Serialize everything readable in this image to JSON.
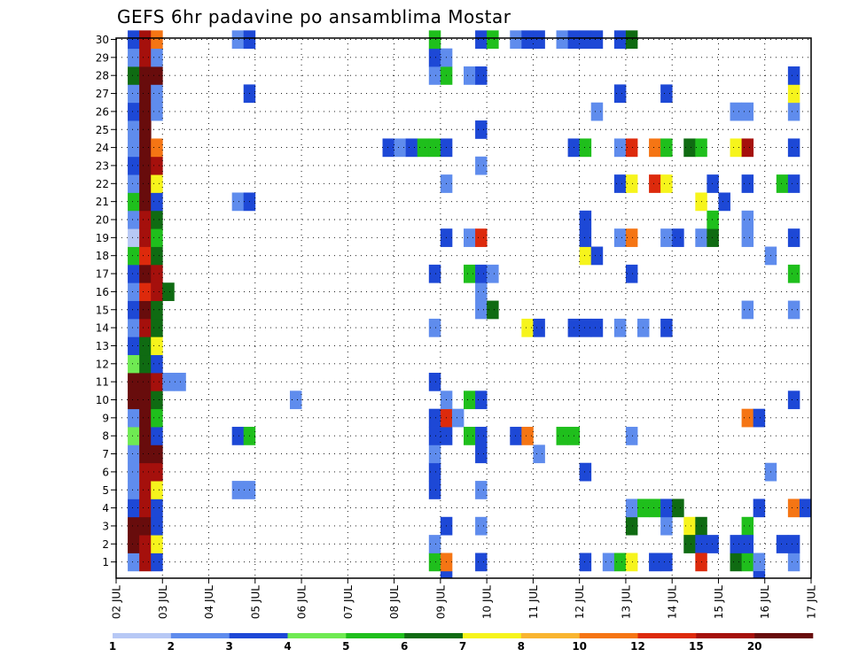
{
  "chart_data": {
    "type": "heatmap",
    "title": "GEFS 6hr padavine po ansamblima Mostar",
    "x_tick_labels": [
      "02 JUL",
      "03 JUL",
      "04 JUL",
      "05 JUL",
      "06 JUL",
      "07 JUL",
      "08 JUL",
      "09 JUL",
      "10 JUL",
      "11 JUL",
      "12 JUL",
      "13 JUL",
      "14 JUL",
      "15 JUL",
      "16 JUL",
      "17 JUL"
    ],
    "y_tick_labels": [
      "1",
      "2",
      "3",
      "4",
      "5",
      "6",
      "7",
      "8",
      "9",
      "10",
      "11",
      "12",
      "13",
      "14",
      "15",
      "16",
      "17",
      "18",
      "19",
      "20",
      "21",
      "22",
      "23",
      "24",
      "25",
      "26",
      "27",
      "28",
      "29",
      "30"
    ],
    "n_columns": 60,
    "n_rows": 30,
    "grid": true,
    "legend": {
      "placement": "bottom",
      "labels": [
        "1",
        "2",
        "3",
        "4",
        "5",
        "6",
        "7",
        "8",
        "10",
        "12",
        "15",
        "20"
      ],
      "colors": [
        "#b7c8f5",
        "#5f8ced",
        "#1d48d6",
        "#6fea52",
        "#1fbf1c",
        "#0f6b12",
        "#f6f41c",
        "#f9b530",
        "#f57514",
        "#dd2a0c",
        "#a5100c",
        "#680c0c"
      ]
    },
    "cells": [
      [
        1,
        1,
        1
      ],
      [
        1,
        2,
        11
      ],
      [
        1,
        3,
        11
      ],
      [
        1,
        4,
        2
      ],
      [
        1,
        5,
        1
      ],
      [
        1,
        6,
        1
      ],
      [
        1,
        7,
        1
      ],
      [
        1,
        8,
        3
      ],
      [
        1,
        9,
        1
      ],
      [
        1,
        10,
        11
      ],
      [
        1,
        11,
        11
      ],
      [
        1,
        12,
        3
      ],
      [
        1,
        13,
        2
      ],
      [
        1,
        14,
        1
      ],
      [
        1,
        15,
        2
      ],
      [
        1,
        16,
        1
      ],
      [
        1,
        17,
        2
      ],
      [
        1,
        18,
        4
      ],
      [
        1,
        19,
        0
      ],
      [
        1,
        20,
        1
      ],
      [
        1,
        21,
        4
      ],
      [
        1,
        22,
        1
      ],
      [
        1,
        23,
        2
      ],
      [
        1,
        24,
        1
      ],
      [
        1,
        25,
        1
      ],
      [
        1,
        26,
        2
      ],
      [
        1,
        27,
        1
      ],
      [
        1,
        28,
        5
      ],
      [
        1,
        29,
        1
      ],
      [
        1,
        30,
        2
      ],
      [
        2,
        1,
        10
      ],
      [
        2,
        2,
        10
      ],
      [
        2,
        3,
        11
      ],
      [
        2,
        4,
        10
      ],
      [
        2,
        5,
        10
      ],
      [
        2,
        6,
        10
      ],
      [
        2,
        7,
        11
      ],
      [
        2,
        8,
        11
      ],
      [
        2,
        9,
        11
      ],
      [
        2,
        10,
        11
      ],
      [
        2,
        11,
        11
      ],
      [
        2,
        12,
        5
      ],
      [
        2,
        13,
        5
      ],
      [
        2,
        14,
        10
      ],
      [
        2,
        15,
        11
      ],
      [
        2,
        16,
        9
      ],
      [
        2,
        17,
        11
      ],
      [
        2,
        18,
        9
      ],
      [
        2,
        19,
        10
      ],
      [
        2,
        20,
        10
      ],
      [
        2,
        21,
        11
      ],
      [
        2,
        22,
        11
      ],
      [
        2,
        23,
        11
      ],
      [
        2,
        24,
        11
      ],
      [
        2,
        25,
        11
      ],
      [
        2,
        26,
        11
      ],
      [
        2,
        27,
        11
      ],
      [
        2,
        28,
        11
      ],
      [
        2,
        29,
        10
      ],
      [
        2,
        30,
        10
      ],
      [
        3,
        1,
        2
      ],
      [
        3,
        2,
        6
      ],
      [
        3,
        3,
        2
      ],
      [
        3,
        4,
        2
      ],
      [
        3,
        5,
        6
      ],
      [
        3,
        6,
        10
      ],
      [
        3,
        7,
        11
      ],
      [
        3,
        8,
        2
      ],
      [
        3,
        9,
        4
      ],
      [
        3,
        10,
        5
      ],
      [
        3,
        11,
        10
      ],
      [
        3,
        12,
        2
      ],
      [
        3,
        13,
        6
      ],
      [
        3,
        14,
        5
      ],
      [
        3,
        15,
        5
      ],
      [
        3,
        16,
        10
      ],
      [
        3,
        17,
        10
      ],
      [
        3,
        18,
        5
      ],
      [
        3,
        19,
        4
      ],
      [
        3,
        20,
        5
      ],
      [
        3,
        21,
        2
      ],
      [
        3,
        22,
        6
      ],
      [
        3,
        23,
        10
      ],
      [
        3,
        24,
        8
      ],
      [
        3,
        26,
        1
      ],
      [
        3,
        27,
        1
      ],
      [
        3,
        28,
        11
      ],
      [
        3,
        29,
        1
      ],
      [
        3,
        30,
        8
      ],
      [
        4,
        11,
        1
      ],
      [
        4,
        16,
        5
      ],
      [
        5,
        11,
        1
      ],
      [
        10,
        5,
        1
      ],
      [
        10,
        8,
        2
      ],
      [
        10,
        21,
        1
      ],
      [
        10,
        30,
        1
      ],
      [
        11,
        5,
        1
      ],
      [
        11,
        8,
        4
      ],
      [
        11,
        21,
        2
      ],
      [
        11,
        27,
        2
      ],
      [
        11,
        30,
        2
      ],
      [
        15,
        10,
        1
      ],
      [
        23,
        24,
        2
      ],
      [
        24,
        24,
        1
      ],
      [
        25,
        24,
        2
      ],
      [
        26,
        24,
        4
      ],
      [
        27,
        24,
        4
      ],
      [
        27,
        1,
        4
      ],
      [
        27,
        2,
        1
      ],
      [
        27,
        5,
        2
      ],
      [
        27,
        6,
        2
      ],
      [
        27,
        7,
        1
      ],
      [
        27,
        8,
        2
      ],
      [
        27,
        9,
        2
      ],
      [
        27,
        11,
        2
      ],
      [
        27,
        14,
        1
      ],
      [
        27,
        17,
        2
      ],
      [
        27,
        28,
        1
      ],
      [
        27,
        29,
        2
      ],
      [
        27,
        30,
        4
      ],
      [
        28,
        0,
        2
      ],
      [
        28,
        1,
        8
      ],
      [
        28,
        3,
        2
      ],
      [
        28,
        8,
        2
      ],
      [
        28,
        9,
        9
      ],
      [
        28,
        10,
        1
      ],
      [
        28,
        19,
        2
      ],
      [
        28,
        22,
        1
      ],
      [
        28,
        24,
        2
      ],
      [
        28,
        28,
        4
      ],
      [
        28,
        29,
        1
      ],
      [
        29,
        9,
        1
      ],
      [
        30,
        8,
        4
      ],
      [
        30,
        10,
        4
      ],
      [
        30,
        17,
        4
      ],
      [
        30,
        19,
        1
      ],
      [
        30,
        28,
        1
      ],
      [
        31,
        1,
        2
      ],
      [
        31,
        3,
        1
      ],
      [
        31,
        5,
        1
      ],
      [
        31,
        7,
        2
      ],
      [
        31,
        8,
        2
      ],
      [
        31,
        10,
        2
      ],
      [
        31,
        15,
        1
      ],
      [
        31,
        16,
        1
      ],
      [
        31,
        17,
        2
      ],
      [
        31,
        19,
        9
      ],
      [
        31,
        23,
        1
      ],
      [
        31,
        25,
        2
      ],
      [
        31,
        28,
        2
      ],
      [
        31,
        30,
        2
      ],
      [
        32,
        15,
        5
      ],
      [
        32,
        17,
        1
      ],
      [
        32,
        30,
        4
      ],
      [
        34,
        8,
        2
      ],
      [
        34,
        30,
        1
      ],
      [
        35,
        8,
        8
      ],
      [
        35,
        14,
        6
      ],
      [
        35,
        30,
        2
      ],
      [
        36,
        7,
        1
      ],
      [
        36,
        14,
        2
      ],
      [
        36,
        30,
        2
      ],
      [
        38,
        8,
        4
      ],
      [
        38,
        30,
        1
      ],
      [
        39,
        8,
        4
      ],
      [
        39,
        14,
        2
      ],
      [
        39,
        24,
        2
      ],
      [
        39,
        30,
        2
      ],
      [
        40,
        6,
        2
      ],
      [
        40,
        1,
        2
      ],
      [
        40,
        14,
        2
      ],
      [
        40,
        18,
        6
      ],
      [
        40,
        19,
        2
      ],
      [
        40,
        20,
        2
      ],
      [
        40,
        24,
        4
      ],
      [
        40,
        30,
        2
      ],
      [
        41,
        14,
        2
      ],
      [
        41,
        18,
        2
      ],
      [
        41,
        26,
        1
      ],
      [
        41,
        30,
        2
      ],
      [
        42,
        1,
        1
      ],
      [
        43,
        1,
        4
      ],
      [
        43,
        14,
        1
      ],
      [
        43,
        19,
        1
      ],
      [
        43,
        22,
        2
      ],
      [
        43,
        24,
        1
      ],
      [
        43,
        27,
        2
      ],
      [
        43,
        30,
        2
      ],
      [
        44,
        1,
        6
      ],
      [
        44,
        3,
        5
      ],
      [
        44,
        4,
        1
      ],
      [
        44,
        8,
        1
      ],
      [
        44,
        17,
        2
      ],
      [
        44,
        19,
        8
      ],
      [
        44,
        22,
        6
      ],
      [
        44,
        24,
        9
      ],
      [
        44,
        30,
        5
      ],
      [
        45,
        4,
        4
      ],
      [
        45,
        14,
        1
      ],
      [
        46,
        1,
        2
      ],
      [
        46,
        4,
        4
      ],
      [
        46,
        22,
        9
      ],
      [
        46,
        24,
        8
      ],
      [
        47,
        1,
        2
      ],
      [
        47,
        3,
        1
      ],
      [
        47,
        4,
        2
      ],
      [
        47,
        14,
        2
      ],
      [
        47,
        19,
        1
      ],
      [
        47,
        22,
        6
      ],
      [
        47,
        24,
        4
      ],
      [
        47,
        27,
        2
      ],
      [
        48,
        4,
        5
      ],
      [
        48,
        19,
        2
      ],
      [
        49,
        3,
        6
      ],
      [
        49,
        2,
        5
      ],
      [
        49,
        24,
        5
      ],
      [
        50,
        3,
        5
      ],
      [
        50,
        2,
        2
      ],
      [
        50,
        1,
        9
      ],
      [
        50,
        19,
        1
      ],
      [
        50,
        21,
        6
      ],
      [
        50,
        24,
        4
      ],
      [
        51,
        2,
        2
      ],
      [
        51,
        19,
        5
      ],
      [
        51,
        20,
        4
      ],
      [
        51,
        22,
        2
      ],
      [
        52,
        21,
        2
      ],
      [
        53,
        1,
        5
      ],
      [
        53,
        2,
        2
      ],
      [
        53,
        24,
        6
      ],
      [
        53,
        26,
        1
      ],
      [
        54,
        1,
        4
      ],
      [
        54,
        3,
        4
      ],
      [
        54,
        2,
        2
      ],
      [
        54,
        9,
        8
      ],
      [
        54,
        15,
        1
      ],
      [
        54,
        19,
        1
      ],
      [
        54,
        20,
        1
      ],
      [
        54,
        22,
        2
      ],
      [
        54,
        24,
        10
      ],
      [
        54,
        26,
        1
      ],
      [
        55,
        4,
        2
      ],
      [
        55,
        1,
        1
      ],
      [
        55,
        9,
        2
      ],
      [
        55,
        0,
        2
      ],
      [
        56,
        6,
        1
      ],
      [
        56,
        18,
        1
      ],
      [
        57,
        2,
        2
      ],
      [
        57,
        22,
        4
      ],
      [
        58,
        1,
        1
      ],
      [
        58,
        2,
        2
      ],
      [
        58,
        4,
        8
      ],
      [
        58,
        10,
        2
      ],
      [
        58,
        15,
        1
      ],
      [
        58,
        17,
        4
      ],
      [
        58,
        19,
        2
      ],
      [
        58,
        22,
        2
      ],
      [
        58,
        24,
        2
      ],
      [
        58,
        26,
        1
      ],
      [
        58,
        27,
        6
      ],
      [
        58,
        28,
        2
      ],
      [
        59,
        4,
        2
      ]
    ]
  }
}
